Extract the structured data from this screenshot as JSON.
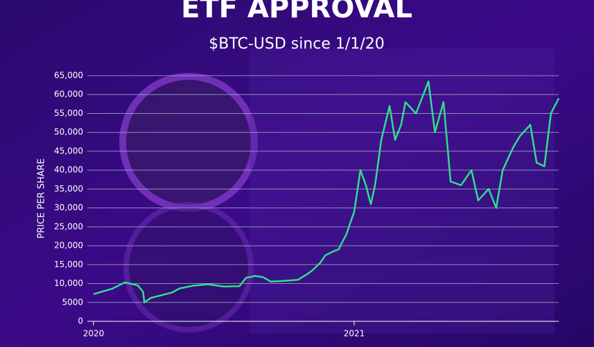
{
  "chart_data": {
    "type": "line",
    "title": "ETF APPROVAL",
    "subtitle": "$BTC-USD since 1/1/20",
    "y_label": "PRICE PER SHARE",
    "x": [
      2020.0,
      2020.03,
      2020.07,
      2020.1,
      2020.12,
      2020.17,
      2020.19,
      2020.195,
      2020.22,
      2020.26,
      2020.3,
      2020.33,
      2020.38,
      2020.44,
      2020.5,
      2020.56,
      2020.585,
      2020.62,
      2020.65,
      2020.68,
      2020.73,
      2020.785,
      2020.82,
      2020.84,
      2020.87,
      2020.89,
      2020.92,
      2020.94,
      2020.97,
      2021.0,
      2021.024,
      2021.045,
      2021.064,
      2021.08,
      2021.104,
      2021.136,
      2021.157,
      2021.18,
      2021.197,
      2021.237,
      2021.26,
      2021.285,
      2021.31,
      2021.343,
      2021.37,
      2021.41,
      2021.45,
      2021.476,
      2021.516,
      2021.545,
      2021.57,
      2021.61,
      2021.636,
      2021.676,
      2021.7,
      2021.73,
      2021.755,
      2021.785
    ],
    "series": [
      {
        "name": "BTC-USD",
        "color": "#2ee08a",
        "values": [
          7200,
          7800,
          8600,
          9600,
          10300,
          9500,
          7800,
          5000,
          6200,
          6900,
          7600,
          8700,
          9400,
          9800,
          9200,
          9300,
          11500,
          12000,
          11700,
          10500,
          10700,
          11000,
          12500,
          13500,
          15500,
          17500,
          18500,
          19000,
          23000,
          29000,
          40000,
          36000,
          31000,
          36000,
          48000,
          57000,
          48000,
          52000,
          58000,
          55000,
          59000,
          63500,
          50000,
          58000,
          37000,
          36000,
          40000,
          32000,
          35000,
          30000,
          40000,
          46000,
          49000,
          52000,
          42000,
          41000,
          55000,
          59000
        ]
      }
    ],
    "xlim": [
      2019.99,
      2021.79
    ],
    "xticks": [
      2020,
      2021
    ],
    "ylim": [
      0,
      65000
    ],
    "yticks": [
      0,
      5000,
      {
        "value": 10000,
        "label": "10,000"
      },
      {
        "value": 15000,
        "label": "15,000"
      },
      {
        "value": 20000,
        "label": "20,000"
      },
      {
        "value": 25000,
        "label": "25,000"
      },
      {
        "value": 30000,
        "label": "30,000"
      },
      {
        "value": 35000,
        "label": "35,000"
      },
      {
        "value": 40000,
        "label": "40,000"
      },
      {
        "value": 45000,
        "label": "45,000"
      },
      {
        "value": 50000,
        "label": "50,000"
      },
      {
        "value": 55000,
        "label": "55,000"
      },
      {
        "value": 60000,
        "label": "60,000"
      },
      {
        "value": 65000,
        "label": "65,000"
      }
    ],
    "grid": true
  }
}
